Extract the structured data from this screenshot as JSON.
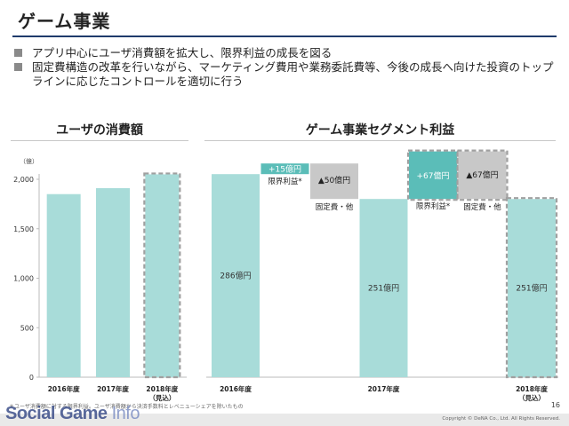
{
  "page": {
    "title": "ゲーム事業",
    "bullets": [
      "アプリ中心にユーザ消費額を拡大し、限界利益の成長を図る",
      "固定費構造の改革を行いながら、マーケティング費用や業務委託費等、今後の成長へ向けた投資のトップラインに応じたコントロールを適切に行う"
    ],
    "footnote": "＊ユーザ消費額に対する限界利益。ユーザ消費額から決済手数料とレベニューシェアを除いたもの",
    "page_number": "16",
    "copyright": "Copyright © DeNA Co., Ltd. All Rights Reserved.",
    "watermark": {
      "part1": "Social Game ",
      "part2": "Info"
    }
  },
  "colors": {
    "bar": "#a8dcd9",
    "bar_outline": "#8ccfca",
    "positive": "#5bbdb8",
    "negative": "#c8c8c8",
    "dash": "#a0a0a0",
    "title_rule": "#1f3b6b"
  },
  "chart_data": [
    {
      "type": "bar",
      "title": "ユーザの消費額",
      "unit_label": "（億）",
      "categories": [
        "2016年度",
        "2017年度",
        "2018年度\n（見込）"
      ],
      "values": [
        1850,
        1910,
        2050
      ],
      "estimate_flags": [
        false,
        false,
        true
      ],
      "ylim": [
        0,
        2000
      ],
      "yticks": [
        0,
        500,
        1000,
        1500,
        2000
      ],
      "ytick_labels": [
        "0",
        "500",
        "1,000",
        "1,500",
        "2,000"
      ],
      "grid": false
    },
    {
      "type": "bar",
      "subtype": "waterfall",
      "title": "ゲーム事業セグメント利益",
      "categories": [
        "2016年度",
        "",
        "",
        "2017年度",
        "",
        "",
        "2018年度\n（見込）"
      ],
      "steps": [
        {
          "kind": "total",
          "value": 286,
          "label": "286億円",
          "axis_label": "2016年度"
        },
        {
          "kind": "increase",
          "value": 15,
          "label": "+15億円",
          "caption": "限界利益*"
        },
        {
          "kind": "decrease",
          "value": -50,
          "label": "▲50億円",
          "caption": "固定費・他"
        },
        {
          "kind": "total",
          "value": 251,
          "label": "251億円",
          "axis_label": "2017年度"
        },
        {
          "kind": "increase",
          "value": 67,
          "label": "+67億円",
          "caption": "限界利益*",
          "estimate": true
        },
        {
          "kind": "decrease",
          "value": -67,
          "label": "▲67億円",
          "caption": "固定費・他",
          "estimate": true
        },
        {
          "kind": "total",
          "value": 251,
          "label": "251億円",
          "axis_label": "2018年度\n（見込）",
          "estimate": true
        }
      ]
    }
  ]
}
